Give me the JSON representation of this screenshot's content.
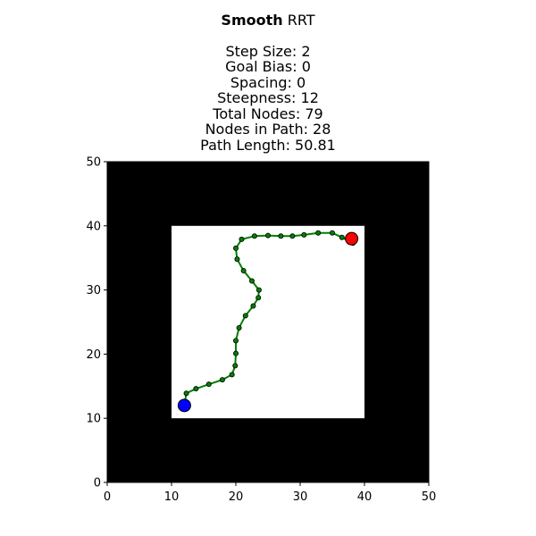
{
  "chart_data": {
    "type": "scatter",
    "title_bold": "Smooth",
    "title_rest": "RRT",
    "info_lines": [
      "Step Size: 2",
      "Goal Bias: 0",
      "Spacing: 0",
      "Steepness: 12",
      "Total Nodes: 79",
      "Nodes in Path: 28",
      "Path Length: 50.81"
    ],
    "xlim": [
      0,
      50
    ],
    "ylim": [
      0,
      50
    ],
    "xticks": [
      0,
      10,
      20,
      30,
      40,
      50
    ],
    "yticks": [
      0,
      10,
      20,
      30,
      40,
      50
    ],
    "xlabel": "",
    "ylabel": "",
    "grid": false,
    "background_color": "#000000",
    "free_region": {
      "x": [
        10,
        40
      ],
      "y": [
        10,
        40
      ],
      "color": "#ffffff"
    },
    "path_color": "#008000",
    "node_color": "#008000",
    "start": {
      "x": 12,
      "y": 12,
      "color": "#0000ff"
    },
    "goal": {
      "x": 38,
      "y": 38,
      "color": "#ff0000"
    },
    "path": [
      [
        12.0,
        12.0
      ],
      [
        12.3,
        13.9
      ],
      [
        13.8,
        14.6
      ],
      [
        15.8,
        15.3
      ],
      [
        17.9,
        16.0
      ],
      [
        19.4,
        16.8
      ],
      [
        19.9,
        18.2
      ],
      [
        20.0,
        20.1
      ],
      [
        20.0,
        22.1
      ],
      [
        20.5,
        24.1
      ],
      [
        21.5,
        26.0
      ],
      [
        22.7,
        27.5
      ],
      [
        23.5,
        28.8
      ],
      [
        23.6,
        30.0
      ],
      [
        22.5,
        31.4
      ],
      [
        21.2,
        33.0
      ],
      [
        20.2,
        34.8
      ],
      [
        20.0,
        36.5
      ],
      [
        20.9,
        37.9
      ],
      [
        22.9,
        38.4
      ],
      [
        25.0,
        38.5
      ],
      [
        27.0,
        38.4
      ],
      [
        28.8,
        38.4
      ],
      [
        30.6,
        38.6
      ],
      [
        32.8,
        38.9
      ],
      [
        35.0,
        38.9
      ],
      [
        36.5,
        38.2
      ],
      [
        38.2,
        37.3
      ],
      [
        38.0,
        38.0
      ]
    ]
  }
}
